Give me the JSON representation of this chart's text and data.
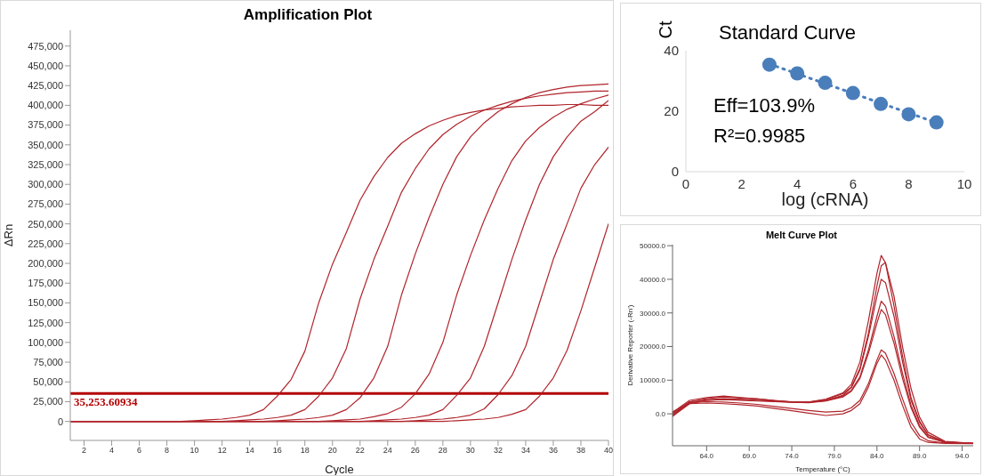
{
  "chart_data": [
    {
      "type": "line",
      "title": "Amplification Plot",
      "xlabel": "Cycle",
      "ylabel": "ΔRn",
      "xlim": [
        1,
        40
      ],
      "xticks": [
        2,
        4,
        6,
        8,
        10,
        12,
        14,
        16,
        18,
        20,
        22,
        24,
        26,
        28,
        30,
        32,
        34,
        36,
        38,
        40
      ],
      "ylim": [
        -24000,
        495000
      ],
      "yticks": [
        0,
        {
          "value": 25000,
          "label": "25,000"
        },
        {
          "value": 50000,
          "label": "50,000"
        },
        {
          "value": 75000,
          "label": "75,000"
        },
        {
          "value": 100000,
          "label": "100,000"
        },
        {
          "value": 125000,
          "label": "125,000"
        },
        {
          "value": 150000,
          "label": "150,000"
        },
        {
          "value": 175000,
          "label": "175,000"
        },
        {
          "value": 200000,
          "label": "200,000"
        },
        {
          "value": 225000,
          "label": "225,000"
        },
        {
          "value": 250000,
          "label": "250,000"
        },
        {
          "value": 275000,
          "label": "275,000"
        },
        {
          "value": 300000,
          "label": "300,000"
        },
        {
          "value": 325000,
          "label": "325,000"
        },
        {
          "value": 350000,
          "label": "350,000"
        },
        {
          "value": 375000,
          "label": "375,000"
        },
        {
          "value": 400000,
          "label": "400,000"
        },
        {
          "value": 425000,
          "label": "425,000"
        },
        {
          "value": 450000,
          "label": "450,000"
        },
        {
          "value": 475000,
          "label": "475,000"
        }
      ],
      "grid": false,
      "legend": false,
      "marker": "none",
      "line_style": "solid",
      "ref_lines": [
        {
          "axis": "y",
          "value": 35253.60934,
          "label": "35,253.60934",
          "color": "#b30000"
        }
      ],
      "series": [
        {
          "color": "#b0242b",
          "x": [
            1,
            9,
            10,
            11,
            12,
            13,
            14,
            15,
            16,
            17,
            18,
            19,
            20,
            21,
            22,
            23,
            24,
            25,
            26,
            27,
            28,
            29,
            30,
            31,
            32,
            33,
            34,
            35,
            36,
            37,
            38,
            39,
            40
          ],
          "values": [
            0,
            0,
            1000,
            2000,
            3000,
            5000,
            8000,
            15000,
            32000,
            53000,
            89000,
            150000,
            199000,
            239000,
            280000,
            310000,
            334000,
            352000,
            364000,
            374000,
            381000,
            387000,
            391000,
            394000,
            396000,
            398000,
            399000,
            400000,
            400000,
            401000,
            401000,
            400000,
            400000
          ]
        },
        {
          "color": "#b0242b",
          "x": [
            1,
            12,
            13,
            14,
            15,
            16,
            17,
            18,
            19,
            20,
            21,
            22,
            23,
            24,
            25,
            26,
            27,
            28,
            29,
            30,
            31,
            32,
            33,
            34,
            35,
            36,
            37,
            38,
            39,
            40
          ],
          "values": [
            0,
            0,
            1000,
            2000,
            3000,
            5000,
            8000,
            15000,
            32000,
            55000,
            92000,
            155000,
            205000,
            247000,
            290000,
            320000,
            345000,
            363000,
            376000,
            386000,
            394000,
            400000,
            405000,
            409000,
            412000,
            414000,
            416000,
            417000,
            418000,
            418000
          ]
        },
        {
          "color": "#b0242b",
          "x": [
            1,
            15,
            16,
            17,
            18,
            19,
            20,
            21,
            22,
            23,
            24,
            25,
            26,
            27,
            28,
            29,
            30,
            31,
            32,
            33,
            34,
            35,
            36,
            37,
            38,
            39,
            40
          ],
          "values": [
            0,
            0,
            1000,
            2000,
            3000,
            5000,
            8000,
            15000,
            30000,
            55000,
            95000,
            160000,
            212000,
            258000,
            300000,
            335000,
            360000,
            378000,
            392000,
            402000,
            410000,
            416000,
            420000,
            423000,
            425000,
            426000,
            427000
          ]
        },
        {
          "color": "#b0242b",
          "x": [
            1,
            19,
            20,
            21,
            22,
            23,
            24,
            25,
            26,
            27,
            28,
            29,
            30,
            31,
            32,
            33,
            34,
            35,
            36,
            37,
            38,
            39,
            40
          ],
          "values": [
            0,
            0,
            1000,
            2000,
            3000,
            6000,
            10000,
            18000,
            35000,
            60000,
            100000,
            160000,
            210000,
            255000,
            295000,
            330000,
            355000,
            372000,
            385000,
            395000,
            402000,
            408000,
            413000
          ]
        },
        {
          "color": "#b0242b",
          "x": [
            1,
            22,
            23,
            24,
            25,
            26,
            27,
            28,
            29,
            30,
            31,
            32,
            33,
            34,
            35,
            36,
            37,
            38,
            39,
            40
          ],
          "values": [
            0,
            0,
            1000,
            2000,
            3000,
            5000,
            8000,
            15000,
            33000,
            55000,
            95000,
            150000,
            205000,
            255000,
            300000,
            335000,
            360000,
            380000,
            392000,
            406000
          ]
        },
        {
          "color": "#b0242b",
          "x": [
            1,
            25,
            26,
            27,
            28,
            29,
            30,
            31,
            32,
            33,
            34,
            35,
            36,
            37,
            38,
            39,
            40
          ],
          "values": [
            0,
            0,
            1000,
            2000,
            3000,
            5000,
            8000,
            16000,
            34000,
            58000,
            95000,
            150000,
            205000,
            250000,
            295000,
            325000,
            347000
          ]
        },
        {
          "color": "#b0242b",
          "x": [
            1,
            28,
            29,
            30,
            31,
            32,
            33,
            34,
            35,
            36,
            37,
            38,
            39,
            40
          ],
          "values": [
            0,
            0,
            1000,
            2000,
            3000,
            5000,
            9000,
            15000,
            32000,
            55000,
            90000,
            140000,
            195000,
            250000
          ]
        }
      ]
    },
    {
      "type": "scatter",
      "title": "Standard Curve",
      "xlabel": "log (cRNA)",
      "ylabel": "Ct",
      "xlim": [
        0,
        10
      ],
      "xticks": [
        0,
        2,
        4,
        6,
        8,
        10
      ],
      "ylim": [
        0,
        40
      ],
      "yticks": [
        0,
        20,
        40
      ],
      "grid": false,
      "legend": false,
      "marker": "circle",
      "annotations": [
        "Eff=103.9%",
        "R²=0.9985"
      ],
      "series": [
        {
          "color": "#4a7ebb",
          "x": [
            3,
            4,
            5,
            6,
            7,
            8,
            9
          ],
          "values": [
            35.4,
            32.5,
            29.4,
            26.0,
            22.4,
            19.0,
            16.3
          ]
        },
        {
          "type": "line",
          "line_style": "dotted",
          "marker": "none",
          "color": "#4a7ebb",
          "x": [
            3,
            9
          ],
          "values": [
            35.6,
            16.2
          ]
        }
      ]
    },
    {
      "type": "line",
      "title": "Melt Curve Plot",
      "xlabel": "Temperature (°C)",
      "ylabel": "Derivative Reporter (-Rn')",
      "xlim": [
        60,
        95.3
      ],
      "xticks": [
        {
          "value": 64,
          "label": "64.0"
        },
        {
          "value": 69,
          "label": "69.0"
        },
        {
          "value": 74,
          "label": "74.0"
        },
        {
          "value": 79,
          "label": "79.0"
        },
        {
          "value": 84,
          "label": "84.0"
        },
        {
          "value": 89,
          "label": "89.0"
        },
        {
          "value": 94,
          "label": "94.0"
        }
      ],
      "ylim": [
        -9500,
        50300
      ],
      "yticks": [
        {
          "value": 0,
          "label": "0.0"
        },
        {
          "value": 10000,
          "label": "10000.0"
        },
        {
          "value": 20000,
          "label": "20000.0"
        },
        {
          "value": 30000,
          "label": "30000.0"
        },
        {
          "value": 40000,
          "label": "40000.0"
        },
        {
          "value": 50000,
          "label": "50000.0"
        }
      ],
      "grid": false,
      "legend": false,
      "marker": "none",
      "line_style": "solid",
      "x": [
        60,
        62,
        64,
        66,
        68,
        70,
        72,
        74,
        76,
        78,
        80,
        81,
        82,
        83,
        84,
        84.5,
        85,
        86,
        87,
        88,
        89,
        90,
        92,
        95.3
      ],
      "series": [
        {
          "color": "#b0242b",
          "values": [
            400,
            4000,
            4800,
            5300,
            4800,
            4400,
            4000,
            3500,
            3500,
            4400,
            6200,
            8800,
            15400,
            27700,
            41800,
            47100,
            44900,
            32100,
            17200,
            4800,
            -2200,
            -6200,
            -8400,
            -8800
          ]
        },
        {
          "color": "#b0242b",
          "values": [
            -400,
            3500,
            4500,
            5000,
            4700,
            4400,
            3900,
            3600,
            3500,
            4200,
            6000,
            8000,
            13500,
            24000,
            38000,
            44000,
            45000,
            35000,
            20000,
            7500,
            -1000,
            -5500,
            -8200,
            -8800
          ]
        },
        {
          "color": "#b0242b",
          "values": [
            0,
            3600,
            4200,
            4500,
            4300,
            4000,
            3800,
            3500,
            3400,
            4000,
            5500,
            7800,
            13000,
            23000,
            35000,
            40000,
            39000,
            29000,
            15500,
            4000,
            -2500,
            -6300,
            -8400,
            -8800
          ]
        },
        {
          "color": "#b0242b",
          "values": [
            -800,
            3000,
            4000,
            4300,
            4200,
            4000,
            3700,
            3500,
            3400,
            3900,
            5300,
            7000,
            11000,
            19000,
            29000,
            33500,
            32000,
            23000,
            12000,
            2500,
            -3500,
            -6800,
            -8500,
            -8800
          ]
        },
        {
          "color": "#b0242b",
          "values": [
            -600,
            3200,
            4000,
            4200,
            4000,
            3800,
            3600,
            3400,
            3300,
            3800,
            5000,
            6700,
            10500,
            18000,
            27000,
            31000,
            29500,
            21000,
            10500,
            1800,
            -4000,
            -7000,
            -8500,
            -8800
          ]
        },
        {
          "color": "#b0242b",
          "values": [
            600,
            3300,
            3600,
            3500,
            3200,
            2800,
            2200,
            1600,
            1000,
            500,
            800,
            1800,
            4000,
            9000,
            16000,
            19000,
            18000,
            12000,
            4500,
            -2500,
            -6500,
            -8000,
            -8700,
            -8800
          ]
        },
        {
          "color": "#b0242b",
          "values": [
            200,
            3000,
            3200,
            3000,
            2700,
            2300,
            1600,
            900,
            200,
            -500,
            0,
            1000,
            3000,
            8000,
            15000,
            17500,
            16000,
            10000,
            2500,
            -4000,
            -7500,
            -8500,
            -8800,
            -8900
          ]
        }
      ]
    }
  ]
}
